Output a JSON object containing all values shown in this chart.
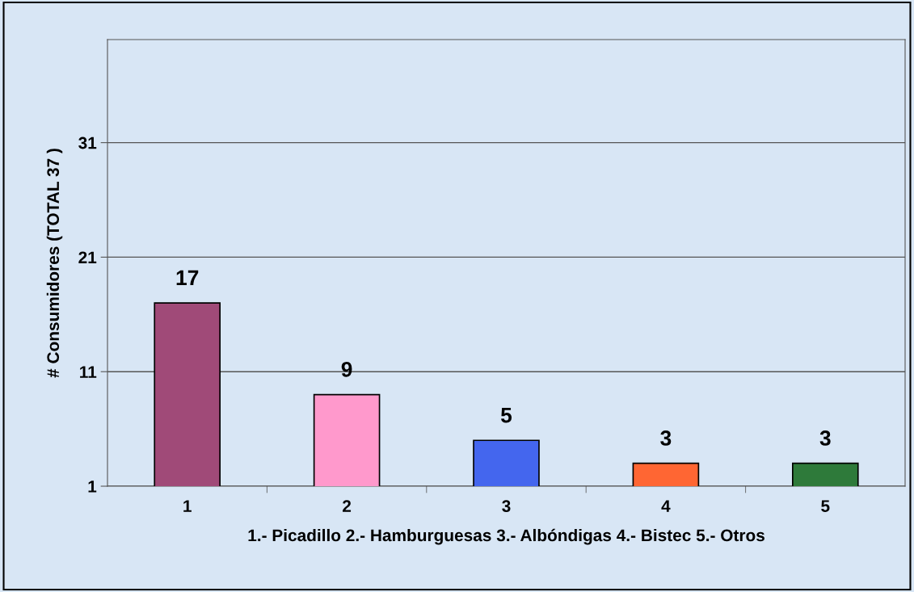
{
  "chart_data": {
    "type": "bar",
    "categories": [
      "1",
      "2",
      "3",
      "4",
      "5"
    ],
    "values": [
      17,
      9,
      5,
      3,
      3
    ],
    "colors": [
      "#a04a78",
      "#ff99cc",
      "#4466ee",
      "#ff6633",
      "#2e7a3a"
    ],
    "ylabel": "# Consumidores (TOTAL 37 )",
    "xlabel": "1.- Picadillo 2.- Hamburguesas 3.- Albóndigas 4.- Bistec 5.- Otros",
    "ylim": [
      1,
      40
    ],
    "yticks": [
      1,
      11,
      21,
      31
    ],
    "grid": "y",
    "data_labels": true
  }
}
